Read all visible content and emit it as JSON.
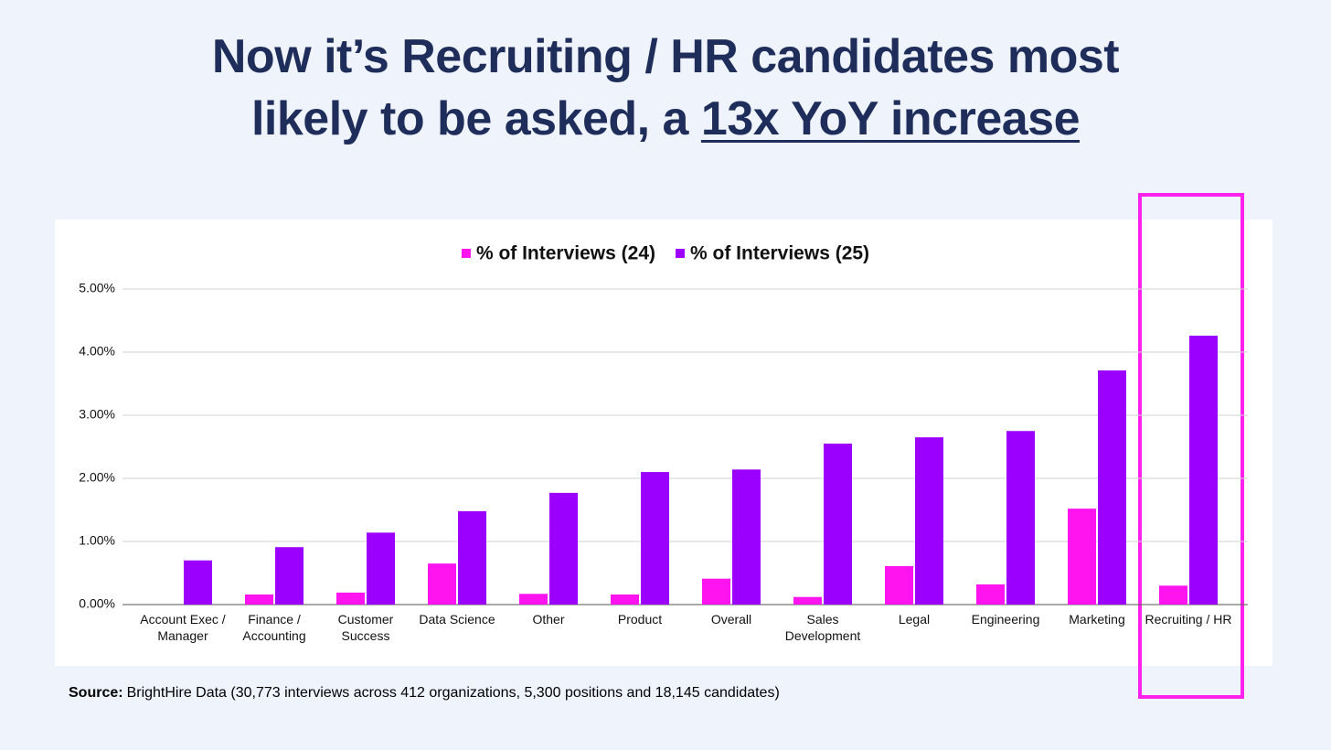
{
  "title_lines": [
    "Now it’s Recruiting / HR candidates most",
    "likely to be asked, a"
  ],
  "title_emphasis": "13x YoY increase",
  "source_label": "Source:",
  "source": "BrightHire Data (30,773 interviews across 412 organizations, 5,300 positions and 18,145 candidates)",
  "chart_data": {
    "type": "bar",
    "categories": [
      "Account Exec / Manager",
      "Finance / Accounting",
      "Customer Success",
      "Data Science",
      "Other",
      "Product",
      "Overall",
      "Sales Development",
      "Legal",
      "Engineering",
      "Marketing",
      "Recruiting / HR"
    ],
    "series": [
      {
        "name": "% of Interviews (24)",
        "color": "#ff14ef",
        "values": [
          0,
          0.16,
          0.19,
          0.65,
          0.17,
          0.16,
          0.41,
          0.12,
          0.61,
          0.32,
          1.52,
          0.3
        ]
      },
      {
        "name": "% of Interviews (25)",
        "color": "#9b00ff",
        "values": [
          0.7,
          0.91,
          1.14,
          1.48,
          1.77,
          2.1,
          2.14,
          2.55,
          2.65,
          2.75,
          3.71,
          4.26
        ]
      }
    ],
    "ylim": [
      0,
      5
    ],
    "yticks": [
      {
        "value": 0,
        "label": "0.00%"
      },
      {
        "value": 1,
        "label": "1.00%"
      },
      {
        "value": 2,
        "label": "2.00%"
      },
      {
        "value": 3,
        "label": "3.00%"
      },
      {
        "value": 4,
        "label": "4.00%"
      },
      {
        "value": 5,
        "label": "5.00%"
      }
    ],
    "grid": true,
    "legend": "top"
  }
}
